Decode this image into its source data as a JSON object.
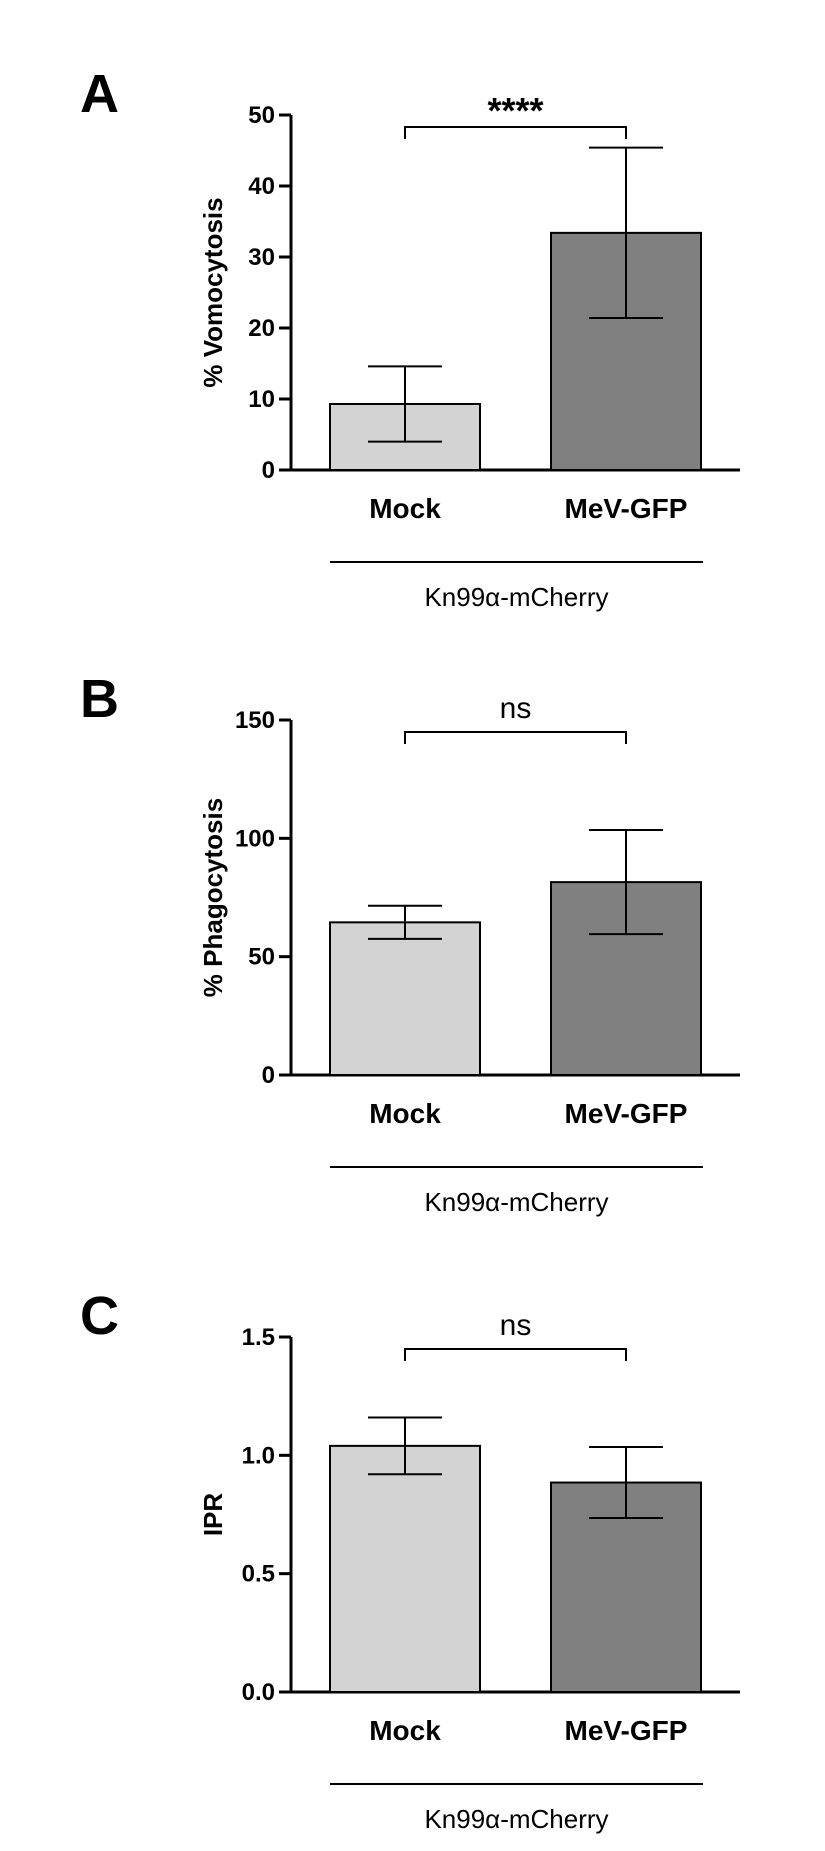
{
  "panels": [
    {
      "letter": "A"
    },
    {
      "letter": "B"
    },
    {
      "letter": "C"
    }
  ],
  "chart_data": [
    {
      "type": "bar",
      "panel": "A",
      "ylabel": "% Vomocytosis",
      "categories": [
        "Mock",
        "MeV-GFP"
      ],
      "values": [
        9.3,
        33.4
      ],
      "error": [
        5.3,
        12.0
      ],
      "ylim": [
        0,
        50
      ],
      "yticks": [
        "0",
        "10",
        "20",
        "30",
        "40",
        "50"
      ],
      "group_label": "Kn99α-mCherry",
      "significance": "****",
      "bar_colors": [
        "#d3d3d3",
        "#808080"
      ]
    },
    {
      "type": "bar",
      "panel": "B",
      "ylabel": "% Phagocytosis",
      "categories": [
        "Mock",
        "MeV-GFP"
      ],
      "values": [
        64.5,
        81.5
      ],
      "error": [
        7.0,
        22.0
      ],
      "ylim": [
        0,
        150
      ],
      "yticks": [
        "0",
        "50",
        "100",
        "150"
      ],
      "group_label": "Kn99α-mCherry",
      "significance": "ns",
      "bar_colors": [
        "#d3d3d3",
        "#808080"
      ]
    },
    {
      "type": "bar",
      "panel": "C",
      "ylabel": "IPR",
      "categories": [
        "Mock",
        "MeV-GFP"
      ],
      "values": [
        1.04,
        0.885
      ],
      "error": [
        0.12,
        0.15
      ],
      "ylim": [
        0,
        1.5
      ],
      "yticks": [
        "0.0",
        "0.5",
        "1.0",
        "1.5"
      ],
      "group_label": "Kn99α-mCherry",
      "significance": "ns",
      "bar_colors": [
        "#d3d3d3",
        "#808080"
      ]
    }
  ]
}
